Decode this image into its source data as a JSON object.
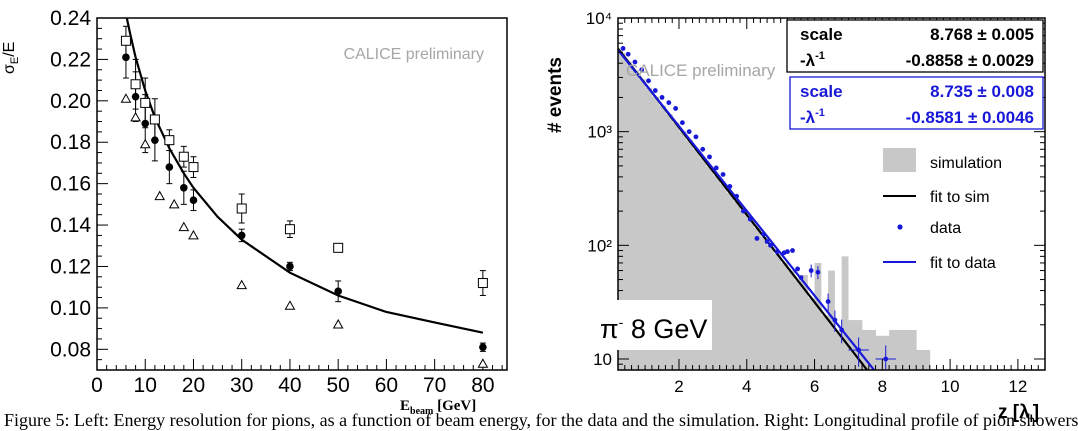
{
  "colors": {
    "data_blue": "#1818d8",
    "sim_gray": "#c8c8c8",
    "text_gray": "#a6a6a6"
  },
  "left_panel": {
    "ylabel": "σE/E",
    "xlabel": "Ebeam [GeV]",
    "preliminary": "CALICE preliminary",
    "x_tick_labels": [
      "0",
      "10",
      "20",
      "30",
      "40",
      "50",
      "60",
      "70",
      "80"
    ],
    "y_tick_labels": [
      "0.08",
      "0.10",
      "0.12",
      "0.14",
      "0.16",
      "0.18",
      "0.20",
      "0.22",
      "0.24"
    ]
  },
  "right_panel": {
    "ylabel": "# events",
    "xlabel": "z [λI]",
    "preliminary": "CALICE preliminary",
    "energy_label": "π- 8 GeV",
    "x_tick_labels": [
      "2",
      "4",
      "6",
      "8",
      "10",
      "12"
    ],
    "y_tick_labels": [
      "10",
      "10²",
      "10³",
      "10⁴"
    ],
    "stats_sim": {
      "r1_label": "scale",
      "r1_value": "8.768 ± 0.005",
      "r2_label": "-λ-1",
      "r2_value": "-0.8858 ± 0.0029"
    },
    "stats_data": {
      "r1_label": "scale",
      "r1_value": "8.735 ± 0.008",
      "r2_label": "-λ-1",
      "r2_value": "-0.8581 ± 0.0046"
    },
    "legend": [
      "simulation",
      "fit to sim",
      "data",
      "fit to data"
    ]
  },
  "caption": "Figure 5: Left: Energy resolution for pions, as a function of beam energy, for the data and the simulation. Right: Longitudinal profile of pion showers",
  "chart_data": [
    {
      "type": "scatter",
      "title": "",
      "xlabel": "Ebeam [GeV]",
      "ylabel": "σE/E",
      "xlim": [
        0,
        85
      ],
      "ylim": [
        0.07,
        0.24
      ],
      "grid": false,
      "series": [
        {
          "marker": "filled-circle",
          "x": [
            6,
            8,
            10,
            12,
            15,
            18,
            20,
            30,
            40,
            50,
            80
          ],
          "y": [
            0.221,
            0.202,
            0.189,
            0.181,
            0.168,
            0.158,
            0.152,
            0.135,
            0.12,
            0.108,
            0.081
          ],
          "err": [
            0.01,
            0.012,
            0.014,
            0.01,
            0.008,
            0.008,
            0.005,
            0.003,
            0.002,
            0.005,
            0.002
          ]
        },
        {
          "marker": "open-square",
          "x": [
            6,
            8,
            10,
            12,
            15,
            18,
            20,
            30,
            40,
            50,
            80
          ],
          "y": [
            0.229,
            0.208,
            0.199,
            0.191,
            0.181,
            0.173,
            0.168,
            0.148,
            0.138,
            0.129,
            0.112
          ],
          "err": [
            0.007,
            0.012,
            0.012,
            0.01,
            0.005,
            0.005,
            0.005,
            0.007,
            0.004,
            0.002,
            0.006
          ]
        },
        {
          "marker": "open-triangle",
          "x": [
            6,
            8,
            10,
            13,
            16,
            18,
            20,
            30,
            40,
            50,
            80
          ],
          "y": [
            0.201,
            0.192,
            0.179,
            0.154,
            0.15,
            0.139,
            0.135,
            0.111,
            0.101,
            0.092,
            0.073
          ],
          "err": [
            0,
            0,
            0,
            0,
            0,
            0,
            0,
            0,
            0,
            0,
            0
          ]
        }
      ],
      "fit_curve": {
        "x": [
          6,
          7,
          8,
          10,
          12,
          15,
          18,
          20,
          25,
          30,
          40,
          50,
          60,
          70,
          80
        ],
        "y": [
          0.242,
          0.231,
          0.221,
          0.205,
          0.192,
          0.177,
          0.165,
          0.158,
          0.144,
          0.133,
          0.117,
          0.106,
          0.098,
          0.093,
          0.088
        ]
      }
    },
    {
      "type": "area",
      "title": "",
      "xlabel": "z [λI]",
      "ylabel": "# events",
      "xlim": [
        0.2,
        12.8
      ],
      "ylim": [
        8,
        10000
      ],
      "log_y": true,
      "grid": false,
      "legend_position": "right",
      "series": [
        {
          "name": "simulation",
          "kind": "histogram",
          "x": [
            7.0,
            7.4,
            7.8,
            8.2,
            8.6,
            9.0
          ],
          "y": [
            22,
            18,
            16,
            18,
            18,
            12
          ],
          "envelope_amplitude": 8.768,
          "envelope_slope": -0.8858
        },
        {
          "name": "fit to sim",
          "kind": "line",
          "amplitude": 8.768,
          "slope": -0.8858,
          "x": [
            0.2,
            7.65
          ],
          "y": [
            5800,
            9
          ]
        },
        {
          "name": "data",
          "kind": "points",
          "x": [
            0.35,
            0.5,
            0.7,
            0.9,
            1.1,
            1.3,
            1.5,
            1.7,
            1.9,
            2.1,
            2.3,
            2.5,
            2.7,
            2.9,
            3.1,
            3.3,
            3.5,
            3.7,
            3.9,
            4.1,
            4.3,
            4.5,
            4.6,
            4.7,
            4.9,
            5.1,
            5.2,
            5.35,
            5.5,
            5.6,
            5.9,
            6.1,
            6.4,
            6.6,
            6.8,
            7.3,
            8.1
          ],
          "y": [
            5400,
            4800,
            4100,
            3500,
            2800,
            2300,
            2000,
            1800,
            1600,
            1200,
            1000,
            900,
            700,
            600,
            480,
            420,
            330,
            270,
            200,
            170,
            115,
            125,
            108,
            100,
            88,
            86,
            88,
            90,
            62,
            52,
            60,
            58,
            32,
            22,
            18,
            12,
            10
          ]
        },
        {
          "name": "fit to data",
          "kind": "line",
          "amplitude": 8.735,
          "slope": -0.8581,
          "x": [
            0.2,
            7.8
          ],
          "y": [
            5400,
            9
          ]
        }
      ]
    }
  ]
}
